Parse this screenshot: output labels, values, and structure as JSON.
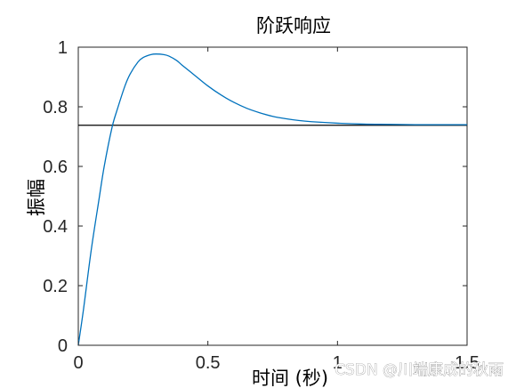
{
  "chart_data": {
    "type": "line",
    "title": "阶跃响应",
    "xlabel": "时间 (秒)",
    "ylabel": "振幅",
    "xlim": [
      0,
      1.5
    ],
    "ylim": [
      0,
      1
    ],
    "xticks": [
      0,
      0.5,
      1,
      1.5
    ],
    "xtick_labels": [
      "0",
      "0.5",
      "1",
      "1.5"
    ],
    "yticks": [
      0,
      0.2,
      0.4,
      0.6,
      0.8,
      1
    ],
    "ytick_labels": [
      "0",
      "0.2",
      "0.4",
      "0.6",
      "0.8",
      "1"
    ],
    "grid": false,
    "series": [
      {
        "color": "#0072BD",
        "x": [
          0,
          0.02,
          0.05,
          0.08,
          0.1,
          0.13,
          0.15,
          0.18,
          0.2,
          0.23,
          0.25,
          0.28,
          0.3,
          0.33,
          0.35,
          0.38,
          0.4,
          0.45,
          0.5,
          0.55,
          0.6,
          0.65,
          0.7,
          0.75,
          0.8,
          0.85,
          0.9,
          1.0,
          1.1,
          1.2,
          1.3,
          1.4,
          1.5
        ],
        "y": [
          0,
          0.12,
          0.32,
          0.49,
          0.6,
          0.73,
          0.79,
          0.87,
          0.91,
          0.95,
          0.965,
          0.975,
          0.977,
          0.975,
          0.97,
          0.955,
          0.94,
          0.905,
          0.87,
          0.84,
          0.815,
          0.795,
          0.78,
          0.768,
          0.76,
          0.754,
          0.75,
          0.745,
          0.742,
          0.741,
          0.74,
          0.74,
          0.74
        ]
      }
    ],
    "reference_lines": [
      {
        "y": 0.738,
        "color": "#000000"
      }
    ]
  },
  "watermark": "CSDN @川端康成的秋雨"
}
